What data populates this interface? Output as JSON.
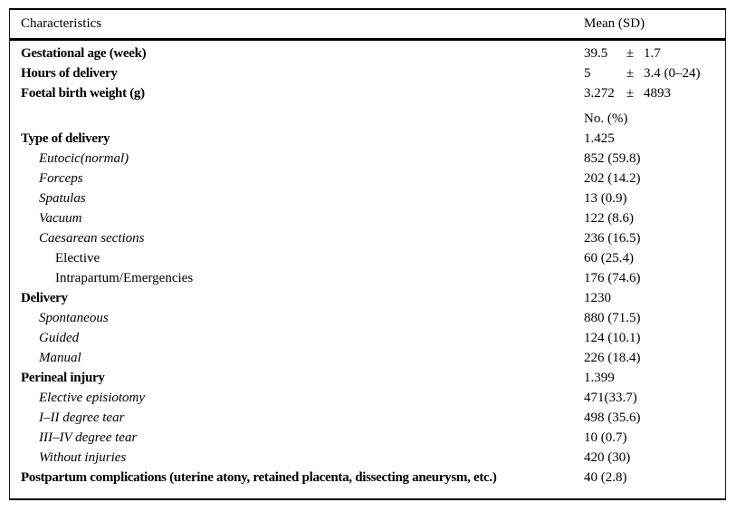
{
  "table": {
    "columns": {
      "characteristics": "Characteristics",
      "mean_sd": "Mean (SD)"
    },
    "section_header_no_pct": "No. (%)",
    "rows": [
      {
        "label": "Gestational age (week)",
        "mean": "39.5",
        "pm": "±",
        "sd": "1.7",
        "style": "bold",
        "indent": 0
      },
      {
        "label": "Hours of delivery",
        "mean": "5",
        "pm": "±",
        "sd": "3.4 (0–24)",
        "style": "bold",
        "indent": 0
      },
      {
        "label": "Foetal birth weight (g)",
        "mean": "3.272",
        "pm": "±",
        "sd": "4893",
        "style": "bold",
        "indent": 0
      },
      {
        "label": "",
        "value": "No. (%)",
        "style": "plain",
        "indent": 0
      },
      {
        "label": "Type of delivery",
        "value": "1.425",
        "style": "bold",
        "indent": 0
      },
      {
        "label": "Eutocic(normal)",
        "value": "852 (59.8)",
        "style": "italic",
        "indent": 1
      },
      {
        "label": "Forceps",
        "value": "202 (14.2)",
        "style": "italic",
        "indent": 1
      },
      {
        "label": "Spatulas",
        "value": "13 (0.9)",
        "style": "italic",
        "indent": 1
      },
      {
        "label": "Vacuum",
        "value": "122 (8.6)",
        "style": "italic",
        "indent": 1
      },
      {
        "label": "Caesarean sections",
        "value": "236 (16.5)",
        "style": "italic",
        "indent": 1
      },
      {
        "label": "Elective",
        "value": "60 (25.4)",
        "style": "plain",
        "indent": 2
      },
      {
        "label": "Intrapartum/Emergencies",
        "value": "176 (74.6)",
        "style": "plain",
        "indent": 2
      },
      {
        "label": "Delivery",
        "value": "1230",
        "style": "bold",
        "indent": 0
      },
      {
        "label": "Spontaneous",
        "value": "880 (71.5)",
        "style": "italic",
        "indent": 1
      },
      {
        "label": "Guided",
        "value": "124 (10.1)",
        "style": "italic",
        "indent": 1
      },
      {
        "label": "Manual",
        "value": "226 (18.4)",
        "style": "italic",
        "indent": 1
      },
      {
        "label": "Perineal injury",
        "value": "1.399",
        "style": "bold",
        "indent": 0
      },
      {
        "label": "Elective episiotomy",
        "value": "471(33.7)",
        "style": "italic",
        "indent": 1
      },
      {
        "label": "I–II degree tear",
        "value": "498 (35.6)",
        "style": "italic",
        "indent": 1
      },
      {
        "label": "III–IV degree tear",
        "value": "10 (0.7)",
        "style": "italic",
        "indent": 1
      },
      {
        "label": "Without injuries",
        "value": "420 (30)",
        "style": "italic",
        "indent": 1
      },
      {
        "label": "Postpartum complications (uterine atony, retained placenta, dissecting aneurysm, etc.)",
        "value": "40 (2.8)",
        "style": "bold",
        "indent": 0
      }
    ]
  }
}
